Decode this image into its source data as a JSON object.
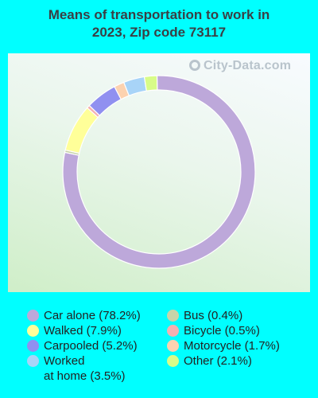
{
  "title_line1": "Means of transportation to work in",
  "title_line2": "2023, Zip code 73117",
  "watermark": "City-Data.com",
  "chart_data": {
    "type": "pie",
    "title": "Means of transportation to work in 2023, Zip code 73117",
    "donut": true,
    "slices": [
      {
        "label": "Car alone",
        "legend": "Car alone (78.2%)",
        "value": 78.2,
        "color": "#bda8da"
      },
      {
        "label": "Bus",
        "legend": "Bus (0.4%)",
        "value": 0.4,
        "color": "#c8d4a8"
      },
      {
        "label": "Walked",
        "legend": "Walked (7.9%)",
        "value": 7.9,
        "color": "#ffff99"
      },
      {
        "label": "Bicycle",
        "legend": "Bicycle (0.5%)",
        "value": 0.5,
        "color": "#f4b0b0"
      },
      {
        "label": "Carpooled",
        "legend": "Carpooled (5.2%)",
        "value": 5.2,
        "color": "#9090f0"
      },
      {
        "label": "Motorcycle",
        "legend": "Motorcycle (1.7%)",
        "value": 1.7,
        "color": "#fcd2b0"
      },
      {
        "label": "Worked at home",
        "legend": "Worked at home (3.5%)",
        "legend_line1": "Worked",
        "legend_line2": "at home (3.5%)",
        "value": 3.5,
        "color": "#a8d4f8"
      },
      {
        "label": "Other",
        "legend": "Other (2.1%)",
        "value": 2.1,
        "color": "#d8fc88"
      }
    ]
  },
  "legend": {
    "left": [
      {
        "text": "Car alone (78.2%)",
        "color": "#bda8da"
      },
      {
        "text": "Walked (7.9%)",
        "color": "#ffff99"
      },
      {
        "text": "Carpooled (5.2%)",
        "color": "#9090f0"
      },
      {
        "line1": "Worked",
        "line2": "at home (3.5%)",
        "color": "#a8d4f8"
      }
    ],
    "right": [
      {
        "text": "Bus (0.4%)",
        "color": "#c8d4a8"
      },
      {
        "text": "Bicycle (0.5%)",
        "color": "#f4b0b0"
      },
      {
        "text": "Motorcycle (1.7%)",
        "color": "#fcd2b0"
      },
      {
        "text": "Other (2.1%)",
        "color": "#d8fc88"
      }
    ]
  }
}
